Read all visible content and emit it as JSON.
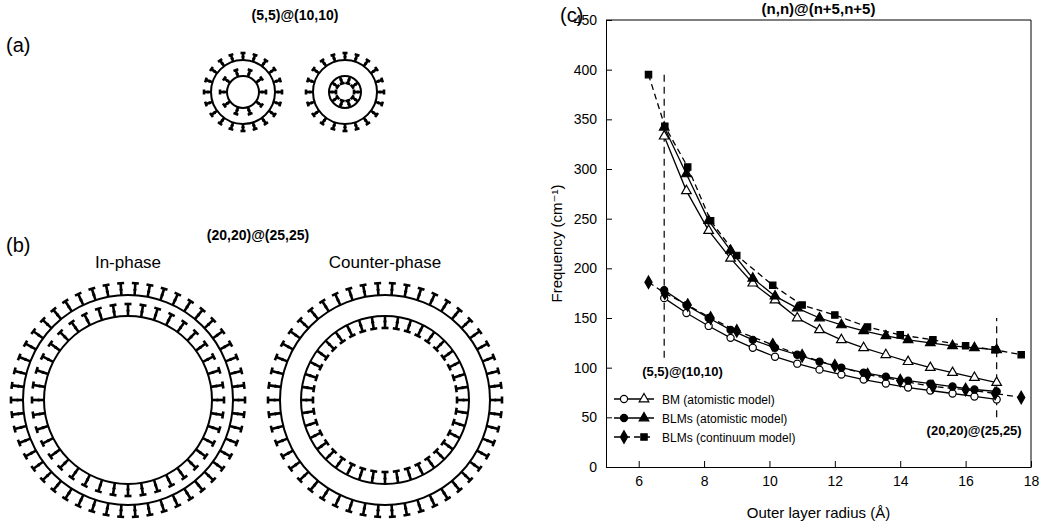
{
  "chart_data": {
    "type": "line",
    "panel_label": "(c)",
    "title": "(n,n)@(n+5,n+5)",
    "x_label": "Outer layer radius (Å)",
    "y_label": "Frequency (cm⁻¹)",
    "xlim": [
      5,
      18
    ],
    "xticks": [
      6,
      8,
      10,
      12,
      14,
      16,
      18
    ],
    "ylim": [
      0,
      450
    ],
    "yticks": [
      0,
      50,
      100,
      150,
      200,
      250,
      300,
      350,
      400,
      450
    ],
    "grid": false,
    "legend": "lower left",
    "series": [
      {
        "name": "BM (atomistic model)",
        "color": "#000000",
        "marker": "circle-open",
        "line_style": "solid",
        "x": [
          6.78,
          7.46,
          8.14,
          8.81,
          9.49,
          10.17,
          10.85,
          11.53,
          12.2,
          12.88,
          13.56,
          14.24,
          14.92,
          15.6,
          16.27,
          16.95
        ],
        "values": [
          170,
          155,
          142,
          130,
          120,
          111,
          104,
          98,
          93,
          88,
          84,
          80,
          77,
          74,
          71,
          68
        ]
      },
      {
        "name": "BM (atomistic model)",
        "color": "#000000",
        "marker": "triangle-open",
        "line_style": "solid",
        "x": [
          6.78,
          7.46,
          8.14,
          8.81,
          9.49,
          10.17,
          10.85,
          11.53,
          12.2,
          12.88,
          13.56,
          14.24,
          14.92,
          15.6,
          16.27,
          16.95
        ],
        "values": [
          333,
          278,
          238,
          210,
          185,
          168,
          150,
          138,
          128,
          120,
          113,
          106,
          100,
          95,
          90,
          85
        ]
      },
      {
        "name": "BLMs (atomistic model)",
        "color": "#000000",
        "marker": "circle",
        "line_style": "solid",
        "x": [
          6.78,
          7.46,
          8.14,
          8.81,
          9.49,
          10.17,
          10.85,
          11.53,
          12.2,
          12.88,
          13.56,
          14.24,
          14.92,
          15.6,
          16.27,
          16.95
        ],
        "values": [
          178,
          163,
          150,
          138,
          128,
          120,
          113,
          106,
          100,
          95,
          91,
          87,
          84,
          81,
          78,
          76
        ]
      },
      {
        "name": "BLMs (atomistic model)",
        "color": "#000000",
        "marker": "triangle",
        "line_style": "solid",
        "x": [
          6.78,
          7.46,
          8.14,
          8.81,
          9.49,
          10.17,
          10.85,
          11.53,
          12.2,
          12.88,
          13.56,
          14.24,
          14.92,
          15.6,
          16.27,
          16.95
        ],
        "values": [
          342,
          295,
          248,
          218,
          190,
          172,
          160,
          150,
          143,
          137,
          132,
          128,
          125,
          122,
          120,
          118
        ]
      },
      {
        "name": "BLMs (continuum model)",
        "color": "#000000",
        "marker": "diamond",
        "line_style": "dashed",
        "x": [
          6.3,
          6.8,
          7.5,
          8.2,
          9.0,
          10.1,
          11.0,
          12.0,
          13.0,
          14.0,
          15.0,
          16.0,
          16.9,
          17.7
        ],
        "values": [
          186,
          175,
          163,
          150,
          137,
          123,
          112,
          102,
          93,
          87,
          81,
          78,
          74,
          70
        ]
      },
      {
        "name": "BLMs (continuum model)",
        "color": "#000000",
        "marker": "square",
        "line_style": "dashed",
        "x": [
          6.3,
          6.8,
          7.5,
          8.2,
          9.0,
          10.1,
          11.0,
          12.0,
          13.0,
          14.0,
          15.0,
          16.0,
          16.9,
          17.7
        ],
        "values": [
          395,
          343,
          302,
          248,
          213,
          183,
          163,
          153,
          141,
          133,
          128,
          122,
          118,
          113
        ]
      }
    ],
    "annotations": [
      {
        "text": "(5,5)@(10,10)",
        "x": 6.78,
        "y": [
          110,
          400
        ]
      },
      {
        "text": "(20,20)@(25,25)",
        "x": 16.95,
        "y": [
          50,
          150
        ]
      }
    ]
  },
  "diagrams": {
    "panel_a": {
      "label": "(a)",
      "title": "(5,5)@(10,10)"
    },
    "panel_b": {
      "label": "(b)",
      "title": "(20,20)@(25,25)",
      "left": "In-phase",
      "right": "Counter-phase"
    }
  }
}
